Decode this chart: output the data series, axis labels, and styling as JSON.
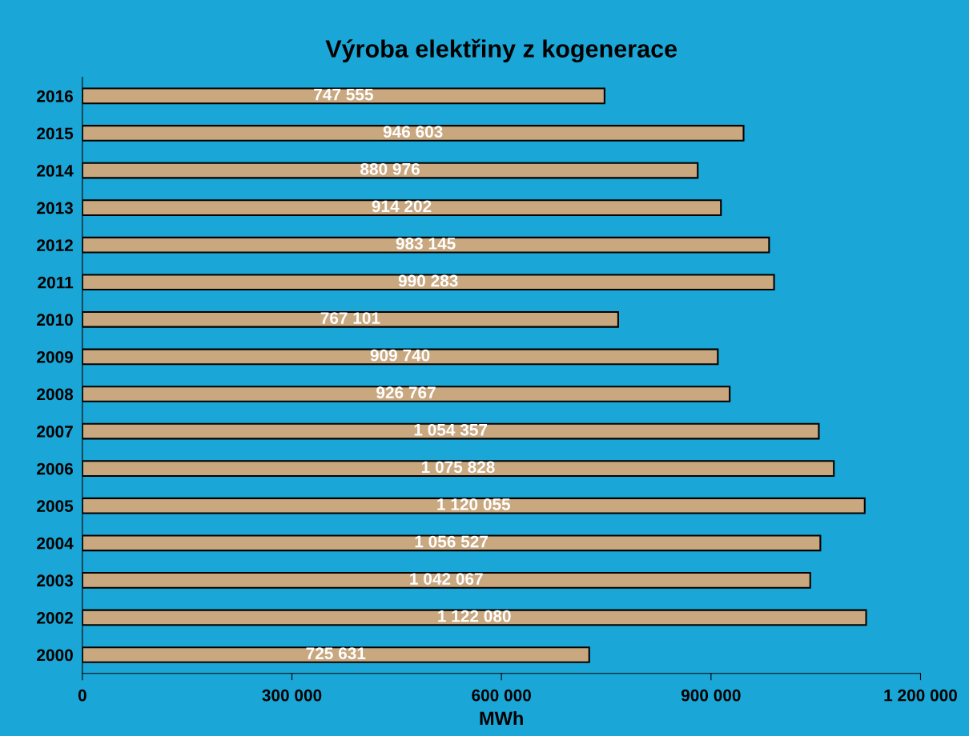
{
  "chart_data": {
    "type": "bar",
    "orientation": "horizontal",
    "title": "Výroba elektřiny z kogenerace",
    "xlabel": "MWh",
    "categories": [
      "2016",
      "2015",
      "2014",
      "2013",
      "2012",
      "2011",
      "2010",
      "2009",
      "2008",
      "2007",
      "2006",
      "2005",
      "2004",
      "2003",
      "2002",
      "2000"
    ],
    "values": [
      747555,
      946603,
      880976,
      914202,
      983145,
      990283,
      767101,
      909740,
      926767,
      1054357,
      1075828,
      1120055,
      1056527,
      1042067,
      1122080,
      725631
    ],
    "value_labels": [
      "747 555",
      "946 603",
      "880 976",
      "914 202",
      "983 145",
      "990 283",
      "767 101",
      "909 740",
      "926 767",
      "1 054 357",
      "1 075 828",
      "1 120 055",
      "1 056 527",
      "1 042 067",
      "1 122 080",
      "725 631"
    ],
    "color": "#c9a77f",
    "xlim": [
      0,
      1200000
    ],
    "xticks": [
      0,
      {
        "value": 300000,
        "label": "300 000"
      },
      {
        "value": 600000,
        "label": "600 000"
      },
      {
        "value": 900000,
        "label": "900 000"
      },
      {
        "value": 1200000,
        "label": "1 200 000"
      }
    ],
    "grid": false
  }
}
